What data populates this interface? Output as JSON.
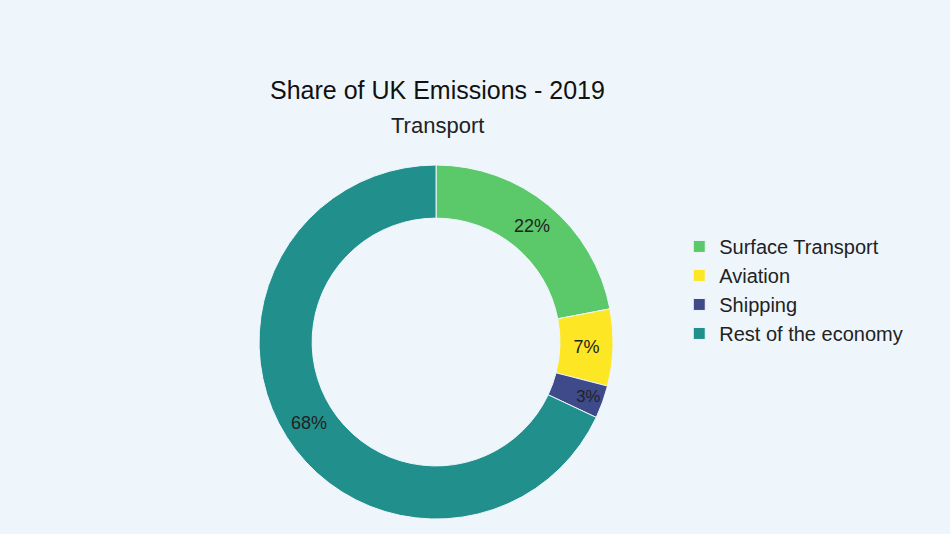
{
  "chart_data": {
    "type": "pie",
    "title": "Share of UK Emissions - 2019",
    "subtitle": "Transport",
    "categories": [
      "Surface Transport",
      "Aviation",
      "Shipping",
      "Rest of the economy"
    ],
    "values": [
      22,
      7,
      3,
      68
    ],
    "value_labels": [
      "22%",
      "7%",
      "3%",
      "68%"
    ],
    "colors": [
      "#5BC86A",
      "#FDE725",
      "#3E4A89",
      "#21908C"
    ],
    "data_labels": true,
    "legend": "right"
  }
}
